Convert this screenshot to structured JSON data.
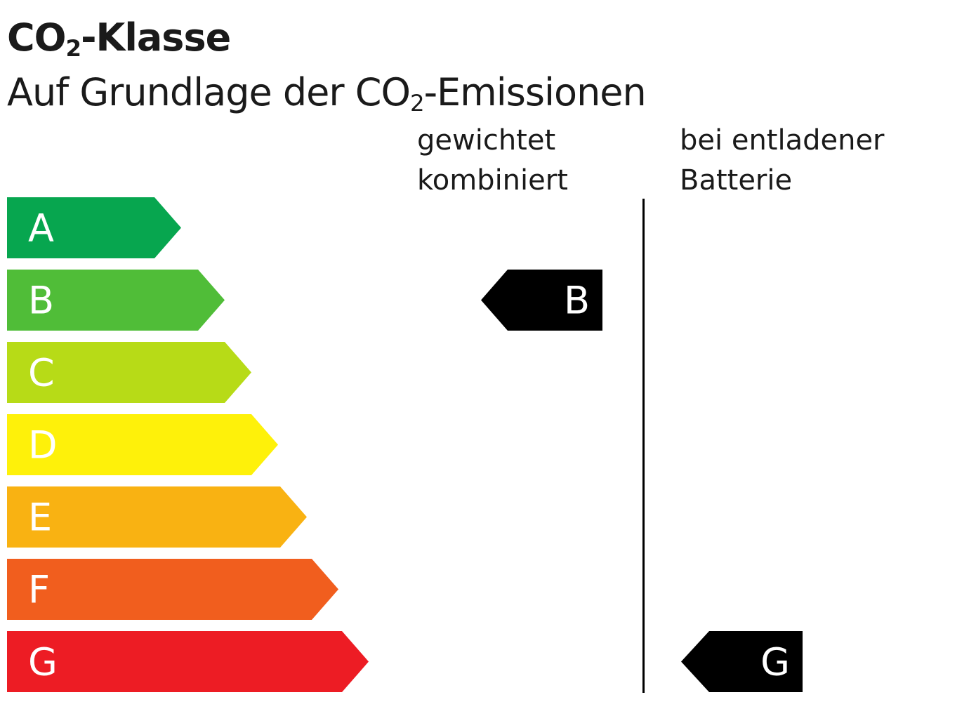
{
  "title": {
    "prefix": "CO",
    "sub": "2",
    "suffix": "-Klasse"
  },
  "subtitle": {
    "prefix": "Auf Grundlage der CO",
    "sub": "2",
    "suffix": "-Emissionen"
  },
  "columns": [
    {
      "line1": "gewichtet",
      "line2": "kombiniert",
      "value": "B"
    },
    {
      "line1": "bei entladener",
      "line2": "Batterie",
      "value": "G"
    }
  ],
  "classes": [
    {
      "label": "A",
      "color": "#07a64f"
    },
    {
      "label": "B",
      "color": "#50bd38"
    },
    {
      "label": "C",
      "color": "#b7db17"
    },
    {
      "label": "D",
      "color": "#fef10a"
    },
    {
      "label": "E",
      "color": "#f9b212"
    },
    {
      "label": "F",
      "color": "#f15e1e"
    },
    {
      "label": "G",
      "color": "#ed1c24"
    }
  ]
}
